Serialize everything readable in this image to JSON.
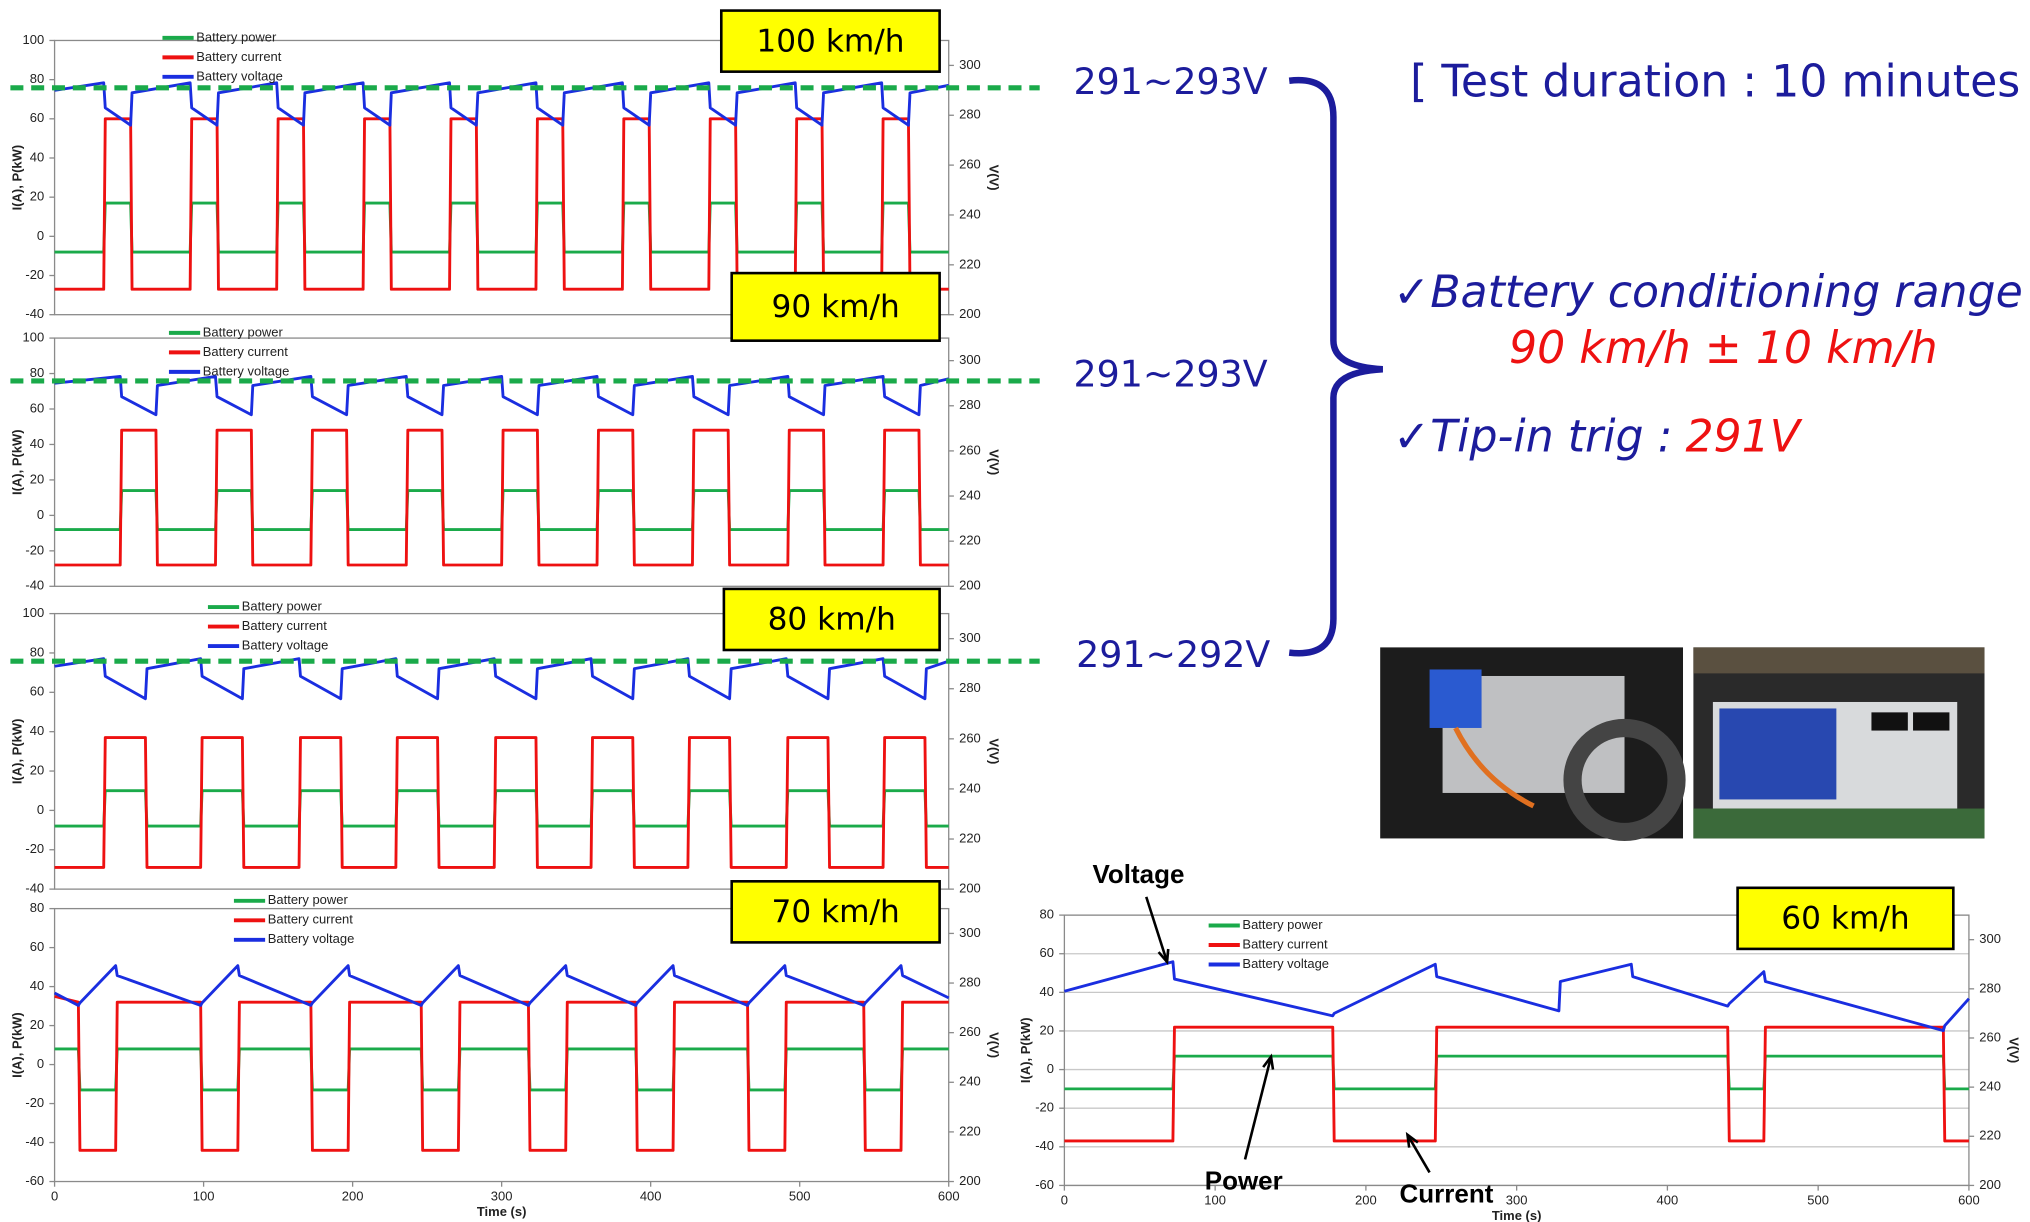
{
  "chart_data": [
    {
      "type": "line",
      "title": "100 km/h",
      "ylabel": "I(A), P(kW)",
      "y2label": "V(V)",
      "xlim": [
        0,
        600
      ],
      "ylim": [
        -40,
        100
      ],
      "yticks": [
        -40,
        -20,
        0,
        20,
        40,
        60,
        80,
        100
      ],
      "y2lim": [
        200,
        310
      ],
      "y2ticks": [
        200,
        220,
        240,
        260,
        280,
        300
      ],
      "grid": false,
      "y2_reference": 291,
      "x": [
        0,
        33,
        34,
        51,
        52,
        91,
        92,
        109,
        110,
        149,
        150,
        167,
        168,
        207,
        208,
        225,
        226,
        265,
        266,
        283,
        284,
        323,
        324,
        341,
        342,
        381,
        382,
        399,
        400,
        439,
        440,
        457,
        458,
        497,
        498,
        515,
        516,
        555,
        556,
        573,
        574,
        600
      ],
      "series": [
        {
          "name": "Battery power",
          "color": "#1aaa4a",
          "values": [
            -8,
            -8,
            17,
            17,
            -8,
            -8,
            17,
            17,
            -8,
            -8,
            17,
            17,
            -8,
            -8,
            17,
            17,
            -8,
            -8,
            17,
            17,
            -8,
            -8,
            17,
            17,
            -8,
            -8,
            17,
            17,
            -8,
            -8,
            17,
            17,
            -8,
            -8,
            17,
            17,
            -8,
            -8,
            17,
            17,
            -8,
            -8
          ]
        },
        {
          "name": "Battery current",
          "color": "#ee1111",
          "values": [
            -27,
            -27,
            60,
            60,
            -27,
            -27,
            60,
            60,
            -27,
            -27,
            60,
            60,
            -27,
            -27,
            60,
            60,
            -27,
            -27,
            60,
            60,
            -27,
            -27,
            60,
            60,
            -27,
            -27,
            60,
            60,
            -27,
            -27,
            60,
            60,
            -27,
            -27,
            60,
            60,
            -27,
            -27,
            60,
            60,
            -27,
            -27
          ]
        },
        {
          "name": "Battery voltage",
          "color": "#1a2ee0",
          "axis": "y2",
          "values": [
            290,
            293,
            283,
            276,
            289,
            293,
            283,
            276,
            289,
            293,
            283,
            276,
            289,
            293,
            283,
            276,
            289,
            293,
            283,
            276,
            289,
            293,
            283,
            276,
            289,
            293,
            283,
            276,
            289,
            293,
            283,
            276,
            289,
            293,
            283,
            276,
            289,
            293,
            283,
            276,
            289,
            292
          ]
        }
      ]
    },
    {
      "type": "line",
      "title": "90 km/h",
      "ylabel": "I(A), P(kW)",
      "y2label": "V(V)",
      "xlim": [
        0,
        600
      ],
      "ylim": [
        -40,
        100
      ],
      "yticks": [
        -40,
        -20,
        0,
        20,
        40,
        60,
        80,
        100
      ],
      "y2lim": [
        200,
        310
      ],
      "y2ticks": [
        200,
        220,
        240,
        260,
        280,
        300
      ],
      "grid": false,
      "y2_reference": 291,
      "x": [
        0,
        44,
        45,
        68,
        69,
        108,
        109,
        132,
        133,
        172,
        173,
        196,
        197,
        236,
        237,
        260,
        261,
        300,
        301,
        324,
        325,
        364,
        365,
        388,
        389,
        428,
        429,
        452,
        453,
        492,
        493,
        516,
        517,
        556,
        557,
        580,
        581,
        600
      ],
      "series": [
        {
          "name": "Battery power",
          "color": "#1aaa4a",
          "values": [
            -8,
            -8,
            14,
            14,
            -8,
            -8,
            14,
            14,
            -8,
            -8,
            14,
            14,
            -8,
            -8,
            14,
            14,
            -8,
            -8,
            14,
            14,
            -8,
            -8,
            14,
            14,
            -8,
            -8,
            14,
            14,
            -8,
            -8,
            14,
            14,
            -8,
            -8,
            14,
            14,
            -8,
            -8
          ]
        },
        {
          "name": "Battery current",
          "color": "#ee1111",
          "values": [
            -28,
            -28,
            48,
            48,
            -28,
            -28,
            48,
            48,
            -28,
            -28,
            48,
            48,
            -28,
            -28,
            48,
            48,
            -28,
            -28,
            48,
            48,
            -28,
            -28,
            48,
            48,
            -28,
            -28,
            48,
            48,
            -28,
            -28,
            48,
            48,
            -28,
            -28,
            48,
            48,
            -28,
            -28
          ]
        },
        {
          "name": "Battery voltage",
          "color": "#1a2ee0",
          "axis": "y2",
          "values": [
            290,
            293,
            284,
            276,
            289,
            293,
            284,
            276,
            289,
            293,
            284,
            276,
            289,
            293,
            284,
            276,
            289,
            293,
            284,
            276,
            289,
            293,
            284,
            276,
            289,
            293,
            284,
            276,
            289,
            293,
            284,
            276,
            289,
            293,
            284,
            276,
            289,
            292
          ]
        }
      ]
    },
    {
      "type": "line",
      "title": "80 km/h",
      "ylabel": "I(A),  P(kW)",
      "y2label": "V(V)",
      "xlim": [
        0,
        600
      ],
      "ylim": [
        -40,
        100
      ],
      "yticks": [
        -40,
        -20,
        0,
        20,
        40,
        60,
        80,
        100
      ],
      "y2lim": [
        200,
        310
      ],
      "y2ticks": [
        200,
        220,
        240,
        260,
        280,
        300
      ],
      "grid": false,
      "y2_reference": 291,
      "x": [
        0,
        33,
        34,
        61,
        62,
        98,
        99,
        126,
        127,
        164,
        165,
        192,
        193,
        229,
        230,
        257,
        258,
        295,
        296,
        323,
        324,
        360,
        361,
        388,
        389,
        425,
        426,
        453,
        454,
        491,
        492,
        519,
        520,
        556,
        557,
        584,
        585,
        600
      ],
      "series": [
        {
          "name": "Battery power",
          "color": "#1aaa4a",
          "values": [
            -8,
            -8,
            10,
            10,
            -8,
            -8,
            10,
            10,
            -8,
            -8,
            10,
            10,
            -8,
            -8,
            10,
            10,
            -8,
            -8,
            10,
            10,
            -8,
            -8,
            10,
            10,
            -8,
            -8,
            10,
            10,
            -8,
            -8,
            10,
            10,
            -8,
            -8,
            10,
            10,
            -8,
            -8
          ]
        },
        {
          "name": "Battery current",
          "color": "#ee1111",
          "values": [
            -29,
            -29,
            37,
            37,
            -29,
            -29,
            37,
            37,
            -29,
            -29,
            37,
            37,
            -29,
            -29,
            37,
            37,
            -29,
            -29,
            37,
            37,
            -29,
            -29,
            37,
            37,
            -29,
            -29,
            37,
            37,
            -29,
            -29,
            37,
            37,
            -29,
            -29,
            37,
            37,
            -29,
            -29
          ]
        },
        {
          "name": "Battery voltage",
          "color": "#1a2ee0",
          "axis": "y2",
          "values": [
            289,
            292,
            285,
            276,
            288,
            292,
            285,
            276,
            288,
            292,
            285,
            276,
            288,
            292,
            285,
            276,
            288,
            292,
            285,
            276,
            288,
            292,
            285,
            276,
            288,
            292,
            285,
            276,
            288,
            292,
            285,
            276,
            288,
            292,
            285,
            276,
            288,
            291
          ]
        }
      ]
    },
    {
      "type": "line",
      "title": "70 km/h",
      "ylabel": "I(A), P(kW)",
      "y2label": "V(V)",
      "xlabel": "Time (s)",
      "xlim": [
        0,
        600
      ],
      "xticks": [
        0,
        100,
        200,
        300,
        400,
        500,
        600
      ],
      "ylim": [
        -60,
        80
      ],
      "yticks": [
        -60,
        -40,
        -20,
        0,
        20,
        40,
        60,
        80
      ],
      "y2lim": [
        200,
        310
      ],
      "y2ticks": [
        200,
        220,
        240,
        260,
        280,
        300
      ],
      "grid": false,
      "x": [
        0,
        16,
        17,
        41,
        42,
        98,
        99,
        123,
        124,
        172,
        173,
        197,
        198,
        246,
        247,
        271,
        272,
        318,
        319,
        343,
        344,
        390,
        391,
        415,
        416,
        465,
        466,
        490,
        491,
        543,
        544,
        568,
        569,
        600
      ],
      "series": [
        {
          "name": "Battery power",
          "color": "#1aaa4a",
          "values": [
            8,
            8,
            -13,
            -13,
            8,
            8,
            -13,
            -13,
            8,
            8,
            -13,
            -13,
            8,
            8,
            -13,
            -13,
            8,
            8,
            -13,
            -13,
            8,
            8,
            -13,
            -13,
            8,
            8,
            -13,
            -13,
            8,
            8,
            -13,
            -13,
            8,
            8
          ]
        },
        {
          "name": "Battery current",
          "color": "#ee1111",
          "values": [
            35,
            32,
            -44,
            -44,
            32,
            32,
            -44,
            -44,
            32,
            32,
            -44,
            -44,
            32,
            32,
            -44,
            -44,
            32,
            32,
            -44,
            -44,
            32,
            32,
            -44,
            -44,
            32,
            32,
            -44,
            -44,
            32,
            32,
            -44,
            -44,
            32,
            32
          ]
        },
        {
          "name": "Battery voltage",
          "color": "#1a2ee0",
          "axis": "y2",
          "values": [
            276,
            271,
            272,
            287,
            283,
            271,
            272,
            287,
            283,
            271,
            272,
            287,
            283,
            271,
            272,
            287,
            283,
            271,
            272,
            287,
            283,
            271,
            272,
            287,
            283,
            271,
            272,
            287,
            283,
            271,
            272,
            287,
            283,
            274
          ]
        }
      ]
    },
    {
      "type": "line",
      "title": "60 km/h",
      "ylabel": "I(A), P(kW)",
      "y2label": "V(V)",
      "xlabel": "Time (s)",
      "xlim": [
        0,
        600
      ],
      "xticks": [
        0,
        100,
        200,
        300,
        400,
        500,
        600
      ],
      "ylim": [
        -60,
        80
      ],
      "yticks": [
        -60,
        -40,
        -20,
        0,
        20,
        40,
        60,
        80
      ],
      "y2lim": [
        200,
        310
      ],
      "y2ticks": [
        200,
        220,
        240,
        260,
        280,
        300
      ],
      "grid": true,
      "annotations": [
        "Voltage",
        "Power",
        "Current"
      ],
      "x": [
        0,
        72,
        73,
        178,
        179,
        246,
        247,
        328,
        329,
        376,
        377,
        440,
        441,
        464,
        465,
        583,
        584,
        600
      ],
      "series": [
        {
          "name": "Battery power",
          "color": "#1aaa4a",
          "values": [
            -10,
            -10,
            7,
            7,
            -10,
            -10,
            7,
            7,
            7,
            7,
            7,
            7,
            -10,
            -10,
            7,
            7,
            -10,
            -10
          ]
        },
        {
          "name": "Battery current",
          "color": "#ee1111",
          "values": [
            -37,
            -37,
            22,
            22,
            -37,
            -37,
            22,
            22,
            22,
            22,
            22,
            22,
            -37,
            -37,
            22,
            22,
            -37,
            -37
          ]
        },
        {
          "name": "Battery voltage",
          "color": "#1a2ee0",
          "axis": "y2",
          "values": [
            279,
            291,
            284,
            269,
            270,
            290,
            285,
            271,
            283,
            290,
            285,
            273,
            274,
            287,
            283,
            263,
            265,
            276
          ]
        }
      ]
    }
  ],
  "slide": {
    "voltage_ranges": [
      "291~293V",
      "291~293V",
      "291~292V"
    ],
    "test_duration": "[ Test duration : 10 minutes ]",
    "bullet_1": "✓Battery conditioning range :",
    "bullet_1_value": "90 km/h ± 10 km/h",
    "bullet_2": "✓Tip-in trig :",
    "bullet_2_value": "291V"
  }
}
